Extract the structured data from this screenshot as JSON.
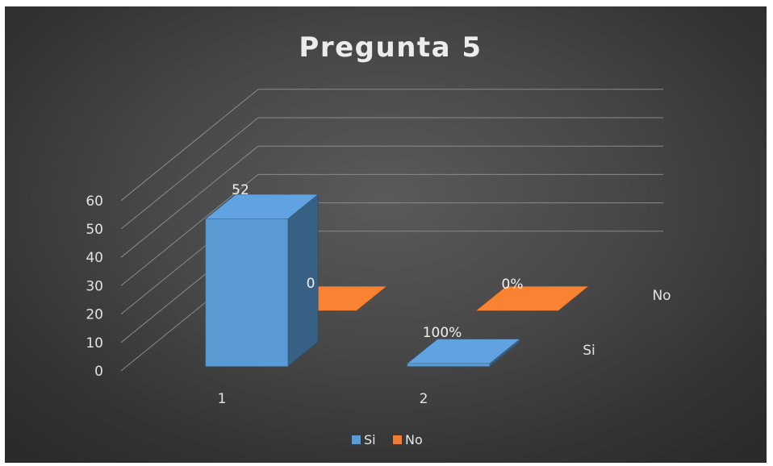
{
  "chart_data": {
    "type": "bar",
    "title": "Pregunta 5",
    "categories": [
      "1",
      "2"
    ],
    "depth_categories": [
      "Si",
      "No"
    ],
    "y_ticks": [
      "0",
      "10",
      "20",
      "30",
      "40",
      "50",
      "60"
    ],
    "ylim": [
      0,
      60
    ],
    "grid": true,
    "legend_position": "bottom",
    "series": [
      {
        "name": "Si",
        "color": "#5b9bd5",
        "values": [
          52,
          1
        ],
        "labels": [
          "52",
          "100%"
        ]
      },
      {
        "name": "No",
        "color": "#ed7d31",
        "values": [
          0,
          0
        ],
        "labels": [
          "0",
          "0%"
        ]
      }
    ]
  }
}
